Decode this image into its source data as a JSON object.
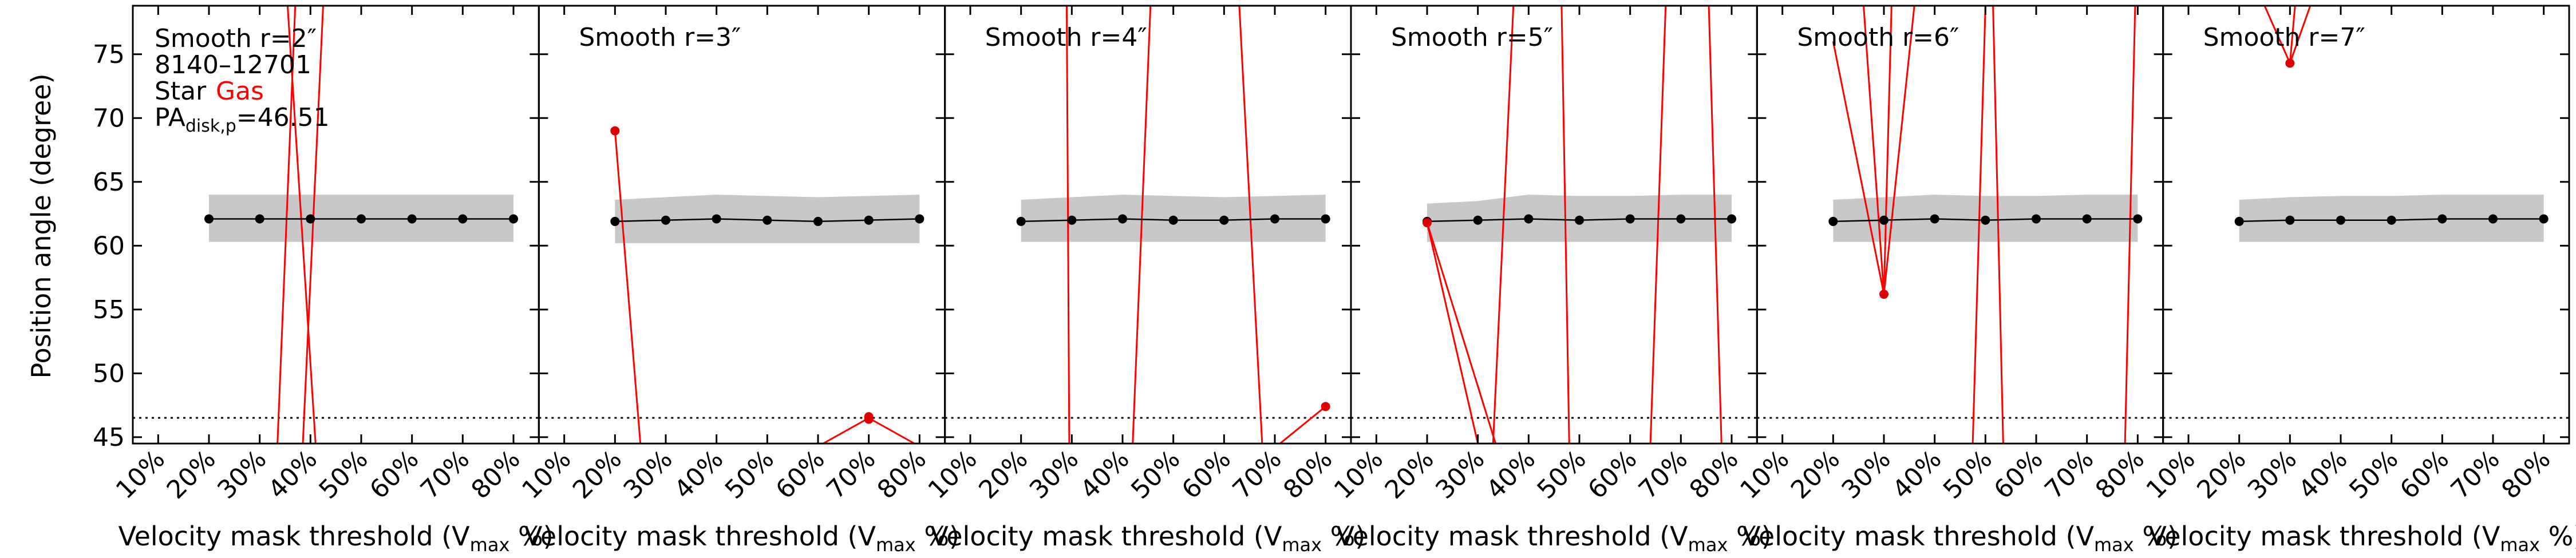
{
  "chart_data": {
    "type": "line",
    "ylabel": "Position angle (degree)",
    "xlabel_main": "Velocity mask threshold (V",
    "xlabel_sub": "max",
    "xlabel_tail": " %)",
    "ylim": [
      44.5,
      78.8
    ],
    "yticks": [
      45,
      50,
      55,
      60,
      65,
      70,
      75
    ],
    "xlim": [
      0.5,
      8.5
    ],
    "xticks": [
      "10%",
      "20%",
      "30%",
      "40%",
      "50%",
      "60%",
      "70%",
      "80%"
    ],
    "pa_disk": 46.51,
    "legend": {
      "galaxy": "8140–12701",
      "star_label": "Star",
      "gas_label": "Gas",
      "pa_main": "PA",
      "pa_sub": "disk,p",
      "pa_value": "=46.51"
    },
    "colors": {
      "star": "#000000",
      "gas": "#ff0000",
      "band": "#c8c8c8"
    },
    "panels": [
      {
        "title": "Smooth r=2″",
        "star": {
          "x": [
            2,
            3,
            4,
            5,
            6,
            7,
            8
          ],
          "y": [
            62.1,
            62.1,
            62.1,
            62.1,
            62.1,
            62.1,
            62.1
          ]
        },
        "band": [
          [
            60.3,
            64.0
          ],
          [
            60.3,
            64.0
          ],
          [
            60.3,
            64.0
          ],
          [
            60.3,
            64.0
          ],
          [
            60.3,
            64.0
          ],
          [
            60.3,
            64.0
          ],
          [
            60.3,
            64.0
          ]
        ],
        "gas_points": [],
        "gas_lines": [
          [
            3.35,
            44.5,
            3.7,
            78.8
          ],
          [
            3.55,
            78.8,
            4.1,
            44.5
          ],
          [
            3.85,
            44.5,
            4.25,
            78.8
          ]
        ]
      },
      {
        "title": "Smooth r=3″",
        "star": {
          "x": [
            2,
            3,
            4,
            5,
            6,
            7,
            8
          ],
          "y": [
            61.9,
            62.0,
            62.1,
            62.0,
            61.9,
            62.0,
            62.1
          ]
        },
        "band": [
          [
            60.2,
            63.6
          ],
          [
            60.2,
            63.8
          ],
          [
            60.2,
            64.0
          ],
          [
            60.2,
            63.9
          ],
          [
            60.2,
            63.8
          ],
          [
            60.2,
            63.9
          ],
          [
            60.2,
            64.0
          ]
        ],
        "gas_points": [
          [
            2,
            69.0
          ],
          [
            7,
            46.4
          ],
          [
            7,
            46.6
          ]
        ],
        "gas_lines": [
          [
            2.0,
            69.0,
            2.5,
            44.5
          ],
          [
            6.1,
            44.5,
            7.0,
            46.5
          ],
          [
            7.0,
            46.5,
            7.9,
            44.5
          ]
        ]
      },
      {
        "title": "Smooth r=4″",
        "star": {
          "x": [
            2,
            3,
            4,
            5,
            6,
            7,
            8
          ],
          "y": [
            61.9,
            62.0,
            62.1,
            62.0,
            62.0,
            62.1,
            62.1
          ]
        },
        "band": [
          [
            60.3,
            63.6
          ],
          [
            60.3,
            63.8
          ],
          [
            60.3,
            64.0
          ],
          [
            60.3,
            63.9
          ],
          [
            60.3,
            63.8
          ],
          [
            60.3,
            63.9
          ],
          [
            60.3,
            64.0
          ]
        ],
        "gas_points": [
          [
            8,
            47.4
          ]
        ],
        "gas_lines": [
          [
            2.9,
            78.8,
            2.95,
            44.5
          ],
          [
            4.2,
            44.5,
            4.55,
            78.8
          ],
          [
            6.3,
            78.8,
            6.75,
            44.5
          ],
          [
            7.1,
            44.5,
            8.0,
            47.4
          ]
        ]
      },
      {
        "title": "Smooth r=5″",
        "star": {
          "x": [
            2,
            3,
            4,
            5,
            6,
            7,
            8
          ],
          "y": [
            61.9,
            62.0,
            62.1,
            62.0,
            62.1,
            62.1,
            62.1
          ]
        },
        "band": [
          [
            60.3,
            63.3
          ],
          [
            60.3,
            63.5
          ],
          [
            60.3,
            64.0
          ],
          [
            60.3,
            63.9
          ],
          [
            60.3,
            63.9
          ],
          [
            60.3,
            64.0
          ],
          [
            60.3,
            64.0
          ]
        ],
        "gas_points": [
          [
            2,
            61.8
          ]
        ],
        "gas_lines": [
          [
            2.0,
            61.8,
            3.0,
            44.5
          ],
          [
            2.0,
            61.8,
            3.35,
            44.5
          ],
          [
            3.3,
            44.5,
            3.7,
            78.8
          ],
          [
            4.65,
            78.8,
            4.8,
            44.5
          ],
          [
            6.4,
            44.5,
            6.7,
            78.8
          ],
          [
            7.55,
            78.8,
            7.8,
            44.5
          ]
        ]
      },
      {
        "title": "Smooth r=6″",
        "star": {
          "x": [
            2,
            3,
            4,
            5,
            6,
            7,
            8
          ],
          "y": [
            61.9,
            62.0,
            62.1,
            62.0,
            62.1,
            62.1,
            62.1
          ]
        },
        "band": [
          [
            60.3,
            63.6
          ],
          [
            60.3,
            63.8
          ],
          [
            60.3,
            64.0
          ],
          [
            60.3,
            63.9
          ],
          [
            60.3,
            63.9
          ],
          [
            60.3,
            64.0
          ],
          [
            60.3,
            64.0
          ]
        ],
        "gas_points": [
          [
            3,
            56.2
          ]
        ],
        "gas_lines": [
          [
            2.0,
            76.0,
            3.0,
            56.2
          ],
          [
            2.6,
            78.8,
            3.0,
            56.2
          ],
          [
            3.0,
            56.2,
            3.15,
            78.8
          ],
          [
            3.0,
            56.2,
            3.6,
            78.8
          ],
          [
            4.75,
            44.5,
            5.0,
            78.8
          ],
          [
            5.15,
            78.8,
            5.35,
            44.5
          ],
          [
            7.75,
            44.5,
            7.95,
            78.8
          ]
        ]
      },
      {
        "title": "Smooth r=7″",
        "star": {
          "x": [
            2,
            3,
            4,
            5,
            6,
            7,
            8
          ],
          "y": [
            61.9,
            62.0,
            62.0,
            62.0,
            62.1,
            62.1,
            62.1
          ]
        },
        "band": [
          [
            60.3,
            63.6
          ],
          [
            60.3,
            63.8
          ],
          [
            60.3,
            63.9
          ],
          [
            60.3,
            63.9
          ],
          [
            60.3,
            64.0
          ],
          [
            60.3,
            64.0
          ],
          [
            60.3,
            64.0
          ]
        ],
        "gas_points": [
          [
            3,
            74.3
          ]
        ],
        "gas_lines": [
          [
            2.5,
            78.8,
            3.0,
            74.3
          ],
          [
            3.0,
            74.3,
            3.4,
            78.8
          ],
          [
            3.0,
            74.3,
            3.1,
            78.8
          ]
        ]
      }
    ]
  }
}
